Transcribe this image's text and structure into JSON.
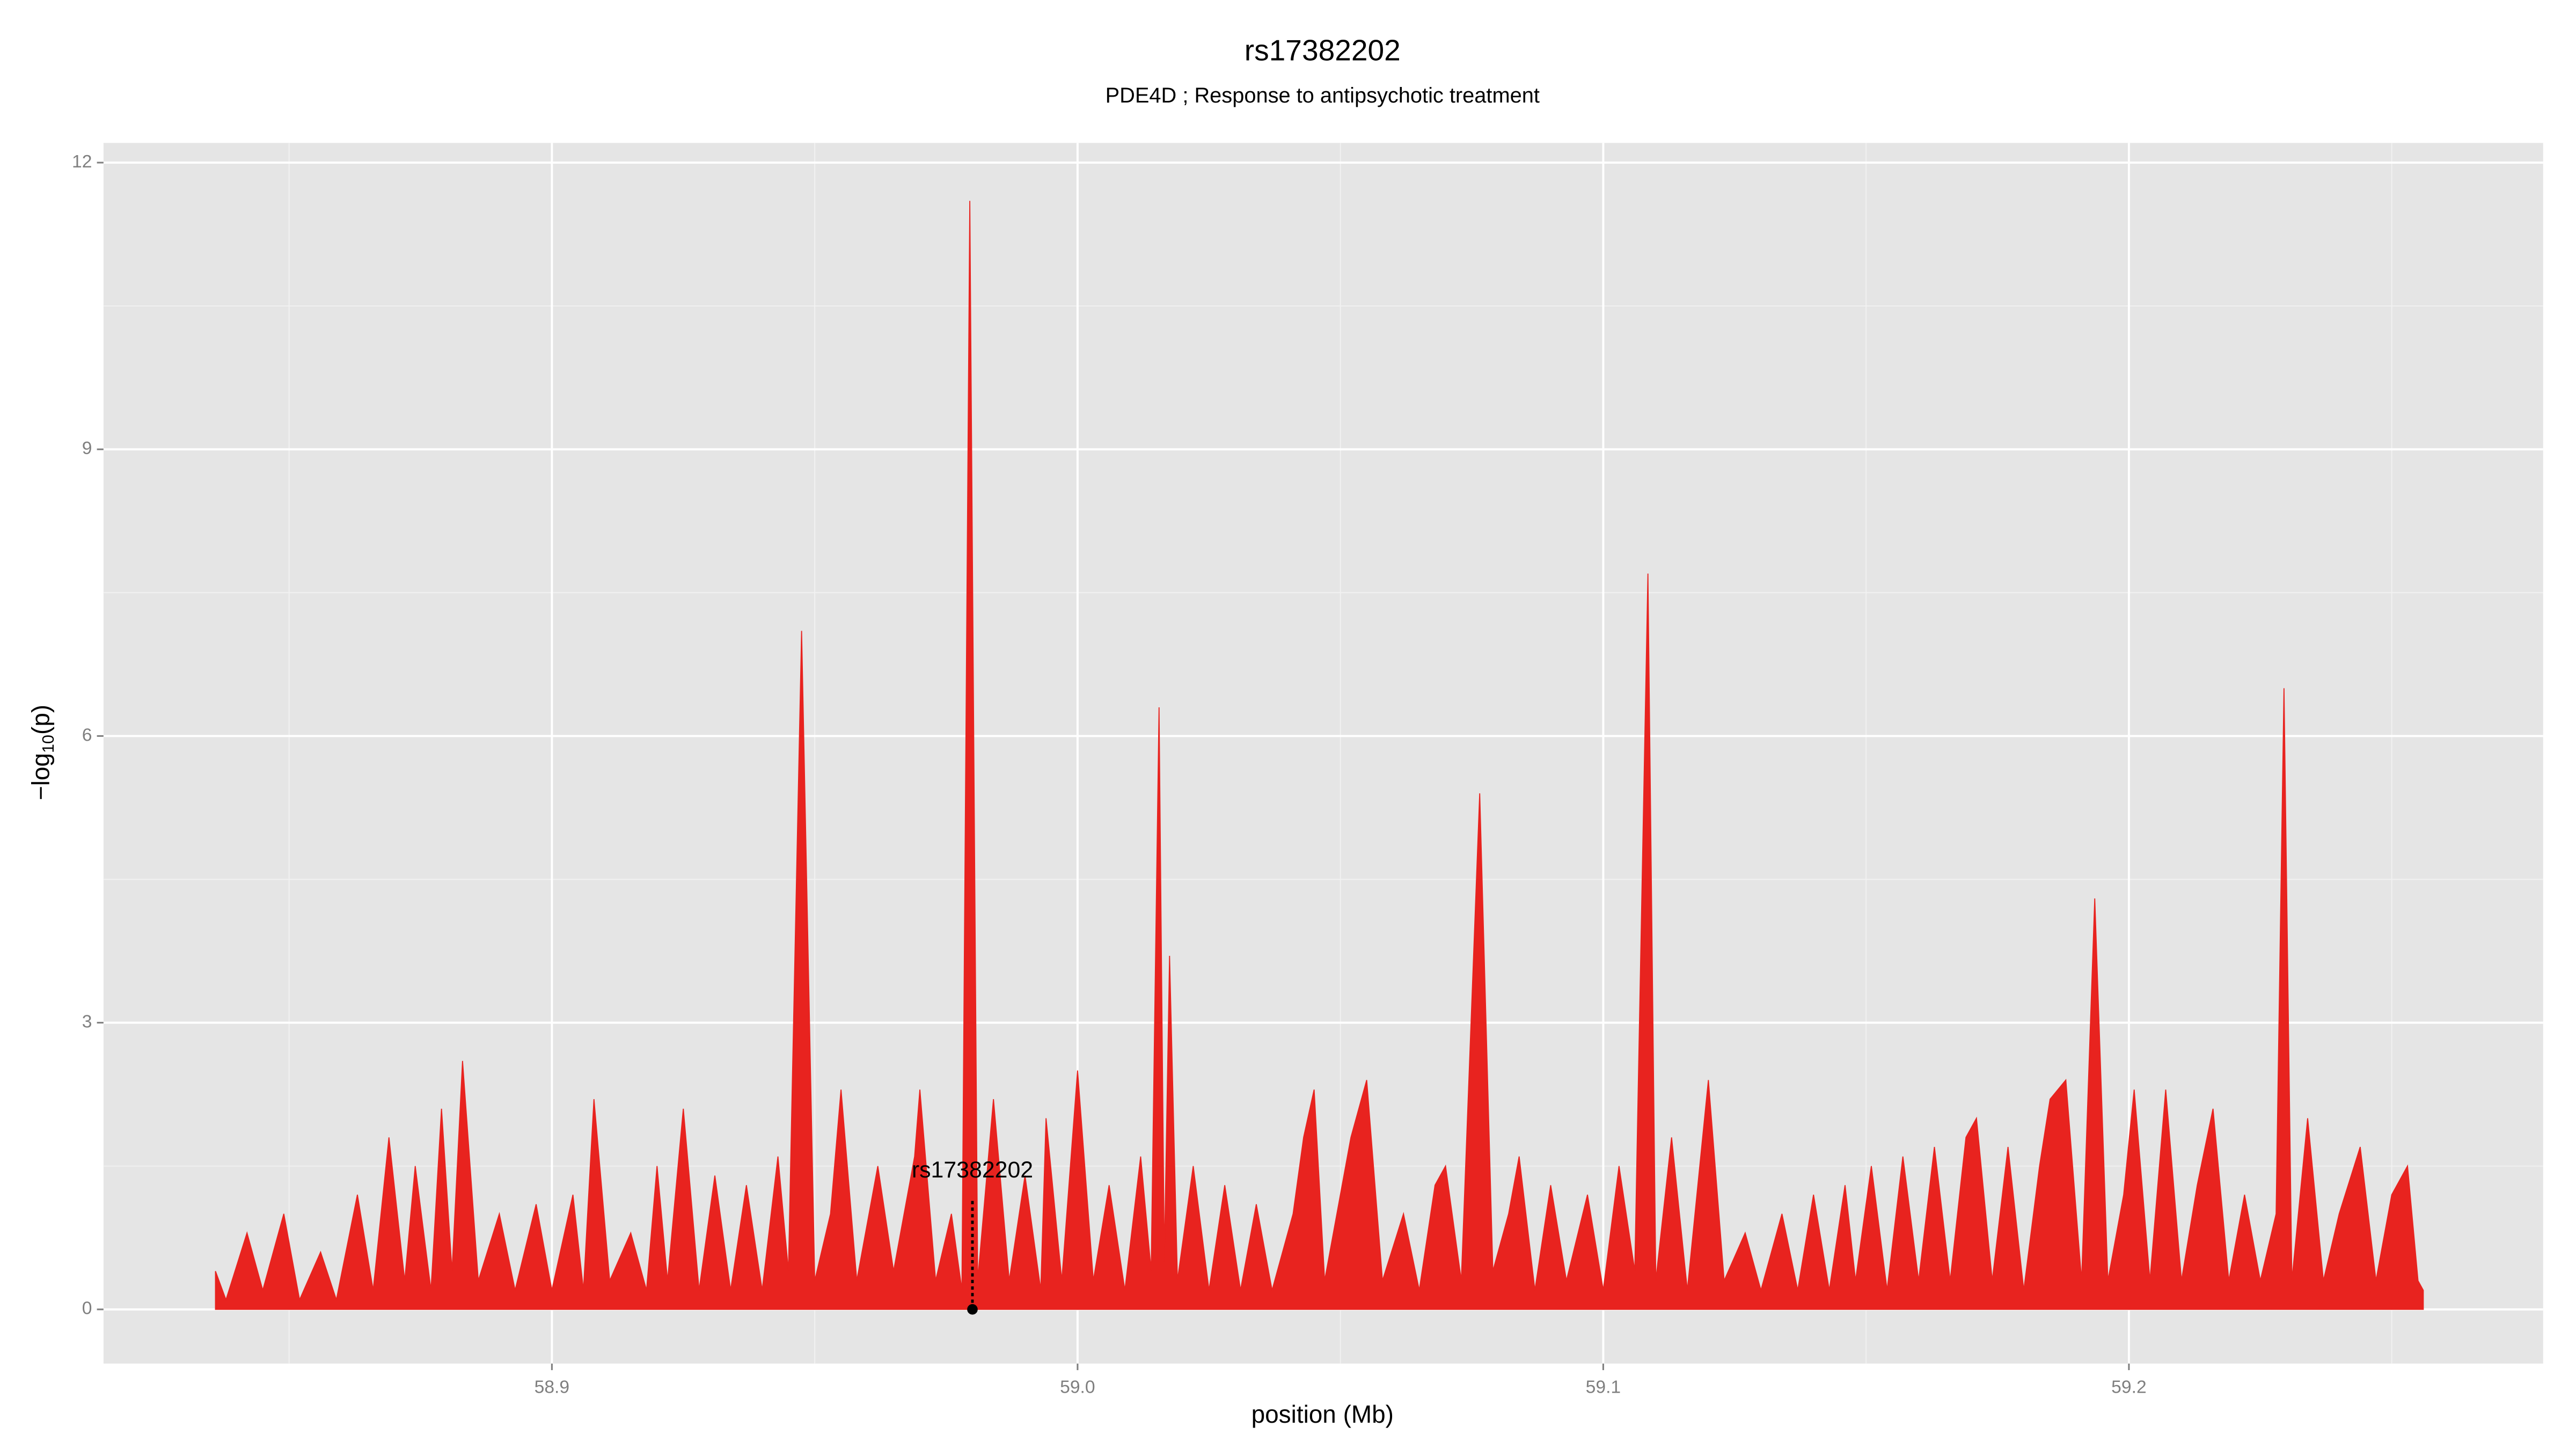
{
  "chart_data": {
    "type": "area",
    "title": "rs17382202",
    "subtitle": "PDE4D ; Response to antipsychotic treatment",
    "x_label": "position (Mb)",
    "y_label": [
      "−log",
      "10",
      "(p)"
    ],
    "color": "#e8231f",
    "x": [
      58.836,
      58.838,
      58.842,
      58.845,
      58.849,
      58.852,
      58.856,
      58.859,
      58.863,
      58.866,
      58.869,
      58.872,
      58.874,
      58.877,
      58.879,
      58.881,
      58.883,
      58.886,
      58.89,
      58.893,
      58.897,
      58.9,
      58.904,
      58.906,
      58.908,
      58.911,
      58.915,
      58.918,
      58.92,
      58.922,
      58.925,
      58.928,
      58.931,
      58.934,
      58.937,
      58.94,
      58.943,
      58.945,
      58.9475,
      58.95,
      58.953,
      58.955,
      58.958,
      58.962,
      58.965,
      58.969,
      58.97,
      58.973,
      58.976,
      58.978,
      58.9795,
      58.981,
      58.984,
      58.987,
      58.99,
      58.993,
      58.994,
      58.997,
      59.0,
      59.003,
      59.006,
      59.009,
      59.012,
      59.014,
      59.0155,
      59.0165,
      59.0175,
      59.019,
      59.022,
      59.025,
      59.028,
      59.031,
      59.034,
      59.037,
      59.041,
      59.043,
      59.045,
      59.047,
      59.05,
      59.052,
      59.055,
      59.058,
      59.062,
      59.065,
      59.068,
      59.07,
      59.073,
      59.0765,
      59.079,
      59.082,
      59.084,
      59.087,
      59.09,
      59.093,
      59.097,
      59.1,
      59.103,
      59.106,
      59.1085,
      59.11,
      59.113,
      59.116,
      59.12,
      59.123,
      59.127,
      59.13,
      59.134,
      59.137,
      59.14,
      59.143,
      59.146,
      59.148,
      59.151,
      59.154,
      59.157,
      59.16,
      59.163,
      59.166,
      59.169,
      59.171,
      59.174,
      59.177,
      59.18,
      59.183,
      59.185,
      59.188,
      59.191,
      59.1935,
      59.196,
      59.199,
      59.201,
      59.204,
      59.207,
      59.21,
      59.213,
      59.216,
      59.219,
      59.222,
      59.225,
      59.228,
      59.2295,
      59.231,
      59.234,
      59.237,
      59.24,
      59.244,
      59.247,
      59.25,
      59.253,
      59.255,
      59.256
    ],
    "values": [
      0.4,
      0.1,
      0.8,
      0.2,
      1.0,
      0.1,
      0.6,
      0.1,
      1.2,
      0.2,
      1.8,
      0.3,
      1.5,
      0.2,
      2.1,
      0.4,
      2.6,
      0.3,
      1.0,
      0.2,
      1.1,
      0.2,
      1.2,
      0.2,
      2.2,
      0.3,
      0.8,
      0.2,
      1.5,
      0.3,
      2.1,
      0.2,
      1.4,
      0.2,
      1.3,
      0.2,
      1.6,
      0.4,
      7.1,
      0.3,
      1.0,
      2.3,
      0.3,
      1.5,
      0.4,
      1.6,
      2.3,
      0.3,
      1.0,
      0.2,
      11.6,
      0.3,
      2.2,
      0.3,
      1.4,
      0.2,
      2.0,
      0.3,
      2.5,
      0.3,
      1.3,
      0.2,
      1.6,
      0.4,
      6.3,
      0.5,
      3.7,
      0.3,
      1.5,
      0.2,
      1.3,
      0.2,
      1.1,
      0.2,
      1.0,
      1.8,
      2.3,
      0.3,
      1.2,
      1.8,
      2.4,
      0.3,
      1.0,
      0.2,
      1.3,
      1.5,
      0.3,
      5.4,
      0.4,
      1.0,
      1.6,
      0.2,
      1.3,
      0.3,
      1.2,
      0.2,
      1.5,
      0.4,
      7.7,
      0.3,
      1.8,
      0.2,
      2.4,
      0.3,
      0.8,
      0.2,
      1.0,
      0.2,
      1.2,
      0.2,
      1.3,
      0.3,
      1.5,
      0.2,
      1.6,
      0.3,
      1.7,
      0.3,
      1.8,
      2.0,
      0.3,
      1.7,
      0.2,
      1.5,
      2.2,
      2.4,
      0.3,
      4.3,
      0.3,
      1.2,
      2.3,
      0.3,
      2.3,
      0.3,
      1.3,
      2.1,
      0.3,
      1.2,
      0.3,
      1.0,
      6.5,
      0.3,
      2.0,
      0.3,
      1.0,
      1.7,
      0.3,
      1.2,
      1.5,
      0.3,
      0.2
    ],
    "annotations": [
      {
        "text": "rs17382202",
        "x": 58.98,
        "y": 0
      }
    ],
    "xlim": [
      58.8147,
      59.2788
    ],
    "ylim": [
      -0.567,
      12.206
    ],
    "xticks": [
      58.9,
      {
        "value": 59,
        "label": "59.0"
      },
      59.1,
      59.2
    ],
    "yticks": [
      0,
      3,
      6,
      9,
      12
    ],
    "x_minor_ticks": [
      58.85,
      58.95,
      59.05,
      59.15,
      59.25
    ],
    "y_minor_ticks": [
      1.5,
      4.5,
      7.5,
      10.5
    ],
    "grid": true
  }
}
